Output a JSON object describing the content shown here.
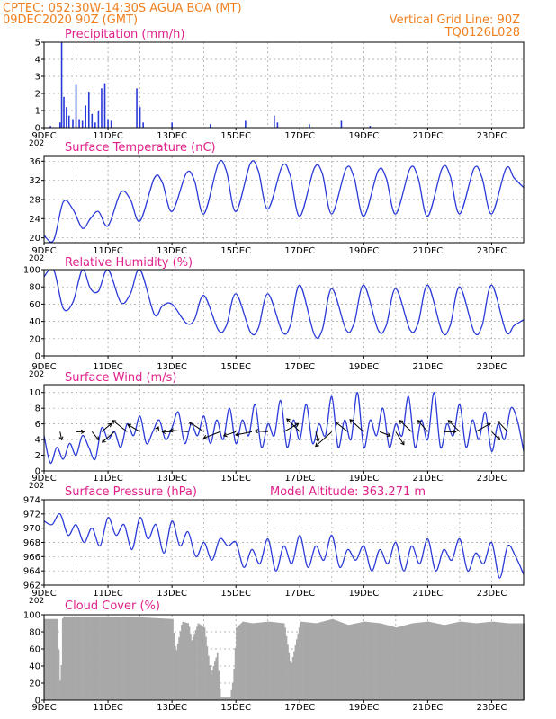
{
  "header": {
    "line1_left": "CPTEC:   052:30W-14:30S   AGUA BOA (MT)",
    "line2_left": "09DEC2020 90Z (GMT)",
    "line1_right": "Vertical Grid Line: 90Z",
    "line2_right": "TQ0126L028"
  },
  "x_tick_labels": [
    "9DEC",
    "11DEC",
    "13DEC",
    "15DEC",
    "17DEC",
    "19DEC",
    "21DEC",
    "23DEC"
  ],
  "year_fragment": "202",
  "chart_data": [
    {
      "id": "precipitation",
      "type": "bar",
      "title": "Precipitation (mm/h)",
      "ylim": [
        0,
        5
      ],
      "yticks": [
        "0",
        "1",
        "2",
        "3",
        "4",
        "5"
      ],
      "x_start_day": 9,
      "x_end_day": 24,
      "x": [
        9.2,
        9.5,
        9.55,
        9.62,
        9.7,
        9.78,
        9.9,
        10.0,
        10.1,
        10.2,
        10.3,
        10.4,
        10.5,
        10.6,
        10.7,
        10.8,
        10.9,
        11.0,
        11.1,
        11.9,
        12.0,
        12.1,
        13.0,
        14.2,
        15.3,
        16.2,
        16.3,
        17.3,
        18.3,
        19.2
      ],
      "values": [
        0.1,
        0.3,
        5.0,
        1.8,
        1.2,
        0.7,
        0.5,
        2.5,
        0.5,
        0.4,
        1.3,
        2.1,
        0.8,
        0.3,
        1.0,
        2.3,
        2.6,
        0.5,
        0.4,
        2.3,
        1.2,
        0.3,
        0.3,
        0.2,
        0.4,
        0.7,
        0.3,
        0.2,
        0.4,
        0.1
      ]
    },
    {
      "id": "temperature",
      "type": "line",
      "title": "Surface Temperature (nC)",
      "ylim": [
        19,
        37
      ],
      "yticks": [
        "20",
        "24",
        "28",
        "32",
        "36"
      ],
      "x_start_day": 9,
      "x_end_day": 24,
      "x": [
        9.0,
        9.3,
        9.6,
        9.9,
        10.2,
        10.45,
        10.7,
        11.0,
        11.4,
        11.7,
        12.0,
        12.45,
        12.7,
        13.0,
        13.45,
        13.7,
        14.0,
        14.45,
        14.7,
        15.0,
        15.45,
        15.7,
        16.0,
        16.45,
        16.7,
        17.0,
        17.45,
        17.7,
        18.0,
        18.45,
        18.7,
        19.0,
        19.45,
        19.7,
        20.0,
        20.45,
        20.7,
        21.0,
        21.45,
        21.7,
        22.0,
        22.45,
        22.7,
        23.0,
        23.45,
        23.7,
        24.0
      ],
      "values": [
        20.5,
        19.5,
        27.5,
        26.0,
        22.0,
        24.0,
        25.5,
        22.5,
        29.5,
        28.0,
        23.5,
        32.5,
        31.5,
        25.5,
        33.5,
        32.0,
        25.0,
        35.5,
        34.0,
        25.5,
        35.5,
        34.0,
        26.0,
        35.0,
        33.0,
        24.5,
        34.5,
        33.5,
        25.0,
        34.5,
        32.5,
        24.5,
        34.0,
        32.5,
        25.0,
        34.5,
        32.5,
        24.5,
        34.5,
        33.0,
        25.0,
        34.5,
        32.5,
        25.0,
        34.5,
        32.5,
        30.5
      ]
    },
    {
      "id": "humidity",
      "type": "line",
      "title": "Relative Humidity (%)",
      "ylim": [
        0,
        100
      ],
      "yticks": [
        "0",
        "20",
        "40",
        "60",
        "80",
        "100"
      ],
      "x_start_day": 9,
      "x_end_day": 24,
      "x": [
        9.0,
        9.3,
        9.6,
        9.9,
        10.2,
        10.45,
        10.7,
        11.0,
        11.4,
        11.7,
        12.0,
        12.45,
        12.7,
        13.0,
        13.45,
        13.7,
        14.0,
        14.45,
        14.7,
        15.0,
        15.45,
        15.7,
        16.0,
        16.45,
        16.7,
        17.0,
        17.45,
        17.7,
        18.0,
        18.45,
        18.7,
        19.0,
        19.45,
        19.7,
        20.0,
        20.45,
        20.7,
        21.0,
        21.45,
        21.7,
        22.0,
        22.45,
        22.7,
        23.0,
        23.45,
        23.7,
        24.0
      ],
      "values": [
        92,
        100,
        55,
        62,
        100,
        78,
        75,
        100,
        62,
        72,
        100,
        48,
        58,
        60,
        38,
        42,
        70,
        30,
        35,
        72,
        28,
        32,
        72,
        28,
        35,
        82,
        25,
        30,
        78,
        30,
        38,
        82,
        30,
        35,
        78,
        30,
        38,
        82,
        28,
        35,
        80,
        28,
        35,
        82,
        28,
        35,
        42
      ]
    },
    {
      "id": "wind",
      "type": "line",
      "title": "Surface Wind (m/s)",
      "ylim": [
        0,
        11
      ],
      "yticks": [
        "0",
        "2",
        "4",
        "6",
        "8",
        "10"
      ],
      "x_start_day": 9,
      "x_end_day": 24,
      "x": [
        9.0,
        9.2,
        9.4,
        9.6,
        9.8,
        10.0,
        10.2,
        10.4,
        10.6,
        10.8,
        11.0,
        11.2,
        11.4,
        11.6,
        11.8,
        12.0,
        12.2,
        12.4,
        12.6,
        12.8,
        13.0,
        13.2,
        13.4,
        13.6,
        13.8,
        14.0,
        14.2,
        14.4,
        14.6,
        14.8,
        15.0,
        15.2,
        15.4,
        15.6,
        15.8,
        16.0,
        16.2,
        16.4,
        16.6,
        16.8,
        17.0,
        17.2,
        17.4,
        17.6,
        17.8,
        18.0,
        18.2,
        18.4,
        18.6,
        18.8,
        19.0,
        19.2,
        19.4,
        19.6,
        19.8,
        20.0,
        20.2,
        20.4,
        20.6,
        20.8,
        21.0,
        21.2,
        21.4,
        21.6,
        21.8,
        22.0,
        22.2,
        22.4,
        22.6,
        22.8,
        23.0,
        23.2,
        23.4,
        23.6,
        23.8,
        24.0
      ],
      "values": [
        4.5,
        1.0,
        3.0,
        1.5,
        3.5,
        2.0,
        4.5,
        3.0,
        1.5,
        5.5,
        4.0,
        5.0,
        3.0,
        6.0,
        4.5,
        7.0,
        3.5,
        5.0,
        6.5,
        4.0,
        5.5,
        7.5,
        3.5,
        6.0,
        4.5,
        7.0,
        3.5,
        6.5,
        4.0,
        8.0,
        3.5,
        6.5,
        4.5,
        8.5,
        3.0,
        6.0,
        4.5,
        9.0,
        3.0,
        6.5,
        4.0,
        8.5,
        3.5,
        6.0,
        4.5,
        9.5,
        3.0,
        6.5,
        4.0,
        10.0,
        3.0,
        6.5,
        4.5,
        8.0,
        3.0,
        6.0,
        4.5,
        9.5,
        3.0,
        6.5,
        4.0,
        10.0,
        3.0,
        6.0,
        4.5,
        8.5,
        3.0,
        6.5,
        4.0,
        7.5,
        2.5,
        6.0,
        4.0,
        8.0,
        6.5,
        2.5
      ]
    },
    {
      "id": "pressure",
      "type": "line",
      "title": "Surface Pressure (hPa)",
      "annotation": "Model Altitude: 363.271 m",
      "ylim": [
        962,
        974
      ],
      "yticks": [
        "962",
        "964",
        "966",
        "968",
        "970",
        "972",
        "974"
      ],
      "x_start_day": 9,
      "x_end_day": 24,
      "x": [
        9.0,
        9.25,
        9.5,
        9.75,
        10.0,
        10.25,
        10.5,
        10.75,
        11.0,
        11.25,
        11.5,
        11.75,
        12.0,
        12.25,
        12.5,
        12.75,
        13.0,
        13.25,
        13.5,
        13.75,
        14.0,
        14.25,
        14.5,
        14.75,
        15.0,
        15.25,
        15.5,
        15.75,
        16.0,
        16.25,
        16.5,
        16.75,
        17.0,
        17.25,
        17.5,
        17.75,
        18.0,
        18.25,
        18.5,
        18.75,
        19.0,
        19.25,
        19.5,
        19.75,
        20.0,
        20.25,
        20.5,
        20.75,
        21.0,
        21.25,
        21.5,
        21.75,
        22.0,
        22.25,
        22.5,
        22.75,
        23.0,
        23.25,
        23.5,
        23.75,
        24.0
      ],
      "values": [
        971,
        970.5,
        972,
        969,
        970.5,
        968,
        970,
        967.5,
        971.5,
        969,
        970.5,
        967,
        971.5,
        968.5,
        970.5,
        966.5,
        971,
        967.5,
        969.5,
        966,
        968,
        965.5,
        968.5,
        967.5,
        968,
        964.5,
        967,
        965,
        968.5,
        964,
        967.5,
        965,
        969,
        964.5,
        967.5,
        965.5,
        969,
        964.5,
        967,
        965.5,
        967.5,
        964,
        967,
        965,
        968,
        964,
        967.5,
        965,
        968.5,
        964,
        967,
        965.5,
        968.5,
        964,
        966.5,
        965,
        968,
        963,
        967.5,
        966,
        963.5
      ]
    },
    {
      "id": "cloud",
      "type": "area",
      "title": "Cloud Cover (%)",
      "ylim": [
        0,
        100
      ],
      "yticks": [
        "0",
        "20",
        "40",
        "60",
        "80",
        "100"
      ],
      "x_start_day": 9,
      "x_end_day": 24,
      "x": [
        9.0,
        9.4,
        9.5,
        9.55,
        9.6,
        10.0,
        11.0,
        12.0,
        12.5,
        13.0,
        13.1,
        13.3,
        13.5,
        13.6,
        13.8,
        14.0,
        14.2,
        14.4,
        14.5,
        14.6,
        14.7,
        14.8,
        14.9,
        15.0,
        15.2,
        15.5,
        16.0,
        16.5,
        16.7,
        17.0,
        17.5,
        18.0,
        18.5,
        19.0,
        19.5,
        20.0,
        20.5,
        21.0,
        21.5,
        22.0,
        22.5,
        23.0,
        23.5,
        24.0
      ],
      "values": [
        95,
        95,
        5,
        95,
        98,
        98,
        98,
        97,
        96,
        95,
        55,
        92,
        90,
        70,
        90,
        85,
        30,
        55,
        3,
        3,
        3,
        3,
        25,
        85,
        92,
        90,
        92,
        90,
        40,
        92,
        90,
        95,
        88,
        92,
        90,
        85,
        90,
        92,
        88,
        92,
        90,
        92,
        90,
        90
      ]
    },
    {
      "id": "wind_vectors",
      "type": "scatter",
      "x": [
        9.5,
        10.0,
        10.5,
        10.8,
        11.2,
        11.6,
        12.0,
        12.5,
        13.0,
        13.5,
        14.0,
        14.5,
        15.0,
        15.5,
        16.0,
        16.5,
        17.0,
        17.5,
        18.0,
        18.5,
        19.0,
        19.5,
        20.0,
        20.5,
        21.0,
        21.5,
        22.0,
        22.5,
        23.0,
        23.5
      ],
      "u": [
        0.2,
        1.0,
        0.8,
        1.2,
        -1.5,
        -1.8,
        -1.5,
        0.3,
        -1.2,
        -2.2,
        -1.8,
        -2.0,
        -1.5,
        -2.0,
        -1.6,
        1.8,
        -1.6,
        0.3,
        -2.0,
        -1.5,
        -1.7,
        1.3,
        1.0,
        -1.5,
        -1.2,
        1.5,
        -1.4,
        1.8,
        1.0,
        -1.2
      ],
      "v": [
        -1.0,
        0.0,
        -1.0,
        1.0,
        -1.3,
        1.4,
        0.9,
        0.6,
        0.0,
        0.2,
        1.2,
        -0.8,
        -0.5,
        -0.4,
        0.1,
        1.0,
        1.6,
        -1.2,
        -1.8,
        1.2,
        1.5,
        -0.5,
        -1.6,
        1.4,
        1.4,
        0.0,
        1.4,
        1.0,
        -1.0,
        1.3
      ]
    }
  ]
}
